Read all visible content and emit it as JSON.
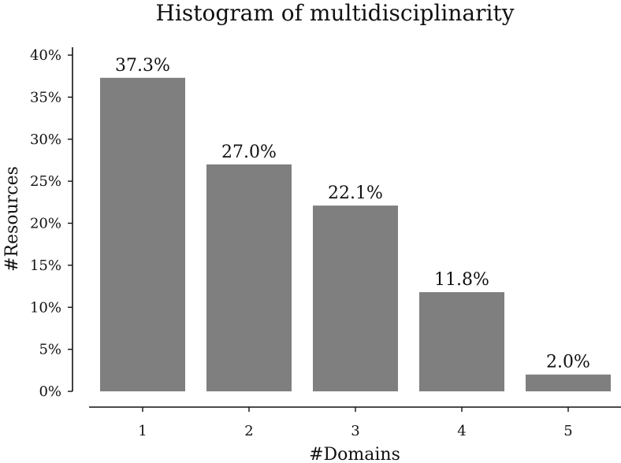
{
  "chart_data": {
    "type": "bar",
    "title": "Histogram of multidisciplinarity",
    "xlabel": "#Domains",
    "ylabel": "#Resources",
    "categories": [
      "1",
      "2",
      "3",
      "4",
      "5"
    ],
    "values": [
      37.3,
      27.0,
      22.1,
      11.8,
      2.0
    ],
    "value_labels": [
      "37.3%",
      "27.0%",
      "22.1%",
      "11.8%",
      "2.0%"
    ],
    "ylim": [
      0,
      40
    ],
    "yticks": [
      0,
      5,
      10,
      15,
      20,
      25,
      30,
      35,
      40
    ],
    "ytick_labels": [
      "0%",
      "5%",
      "10%",
      "15%",
      "20%",
      "25%",
      "30%",
      "35%",
      "40%"
    ],
    "grid": false,
    "bar_color": "#7f7f7f"
  }
}
